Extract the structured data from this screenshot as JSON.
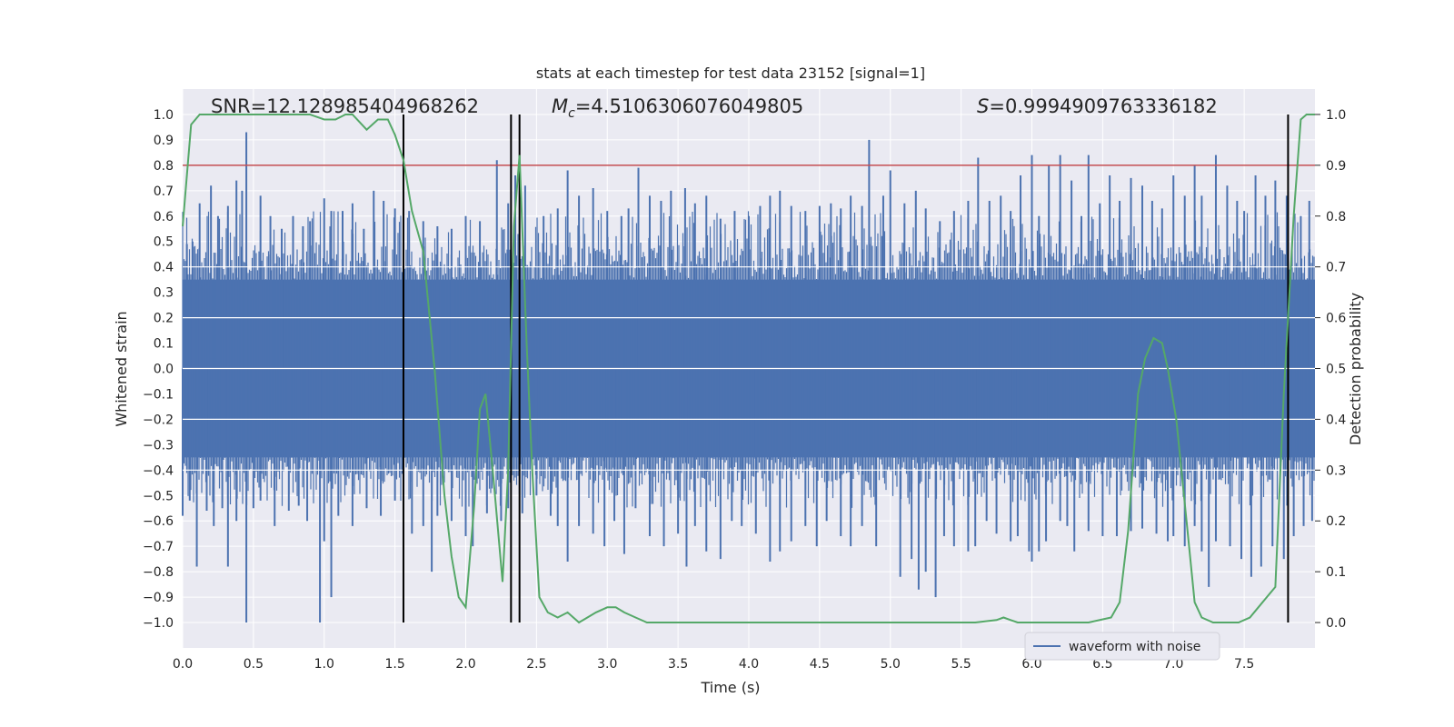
{
  "chart_data": {
    "type": "line",
    "title": "stats at each timestep for test data 23152 [signal=1]",
    "xlabel": "Time (s)",
    "ylabel": "Whitened strain",
    "y2label": "Detection probability",
    "xlim": [
      0.0,
      8.0
    ],
    "ylim": [
      -1.1,
      1.1
    ],
    "y2lim": [
      -0.05,
      1.05
    ],
    "xticks": [
      0.0,
      0.5,
      1.0,
      1.5,
      2.0,
      2.5,
      3.0,
      3.5,
      4.0,
      4.5,
      5.0,
      5.5,
      6.0,
      6.5,
      7.0,
      7.5
    ],
    "xtick_labels": [
      "0.0",
      "0.5",
      "1.0",
      "1.5",
      "2.0",
      "2.5",
      "3.0",
      "3.5",
      "4.0",
      "4.5",
      "5.0",
      "5.5",
      "6.0",
      "6.5",
      "7.0",
      "7.5"
    ],
    "yticks": [
      -1.0,
      -0.9,
      -0.8,
      -0.7,
      -0.6,
      -0.5,
      -0.4,
      -0.3,
      -0.2,
      -0.1,
      0.0,
      0.1,
      0.2,
      0.3,
      0.4,
      0.5,
      0.6,
      0.7,
      0.8,
      0.9,
      1.0
    ],
    "ytick_labels": [
      "−1.0",
      "−0.9",
      "−0.8",
      "−0.7",
      "−0.6",
      "−0.5",
      "−0.4",
      "−0.3",
      "−0.2",
      "−0.1",
      "0.0",
      "0.1",
      "0.2",
      "0.3",
      "0.4",
      "0.5",
      "0.6",
      "0.7",
      "0.8",
      "0.9",
      "1.0"
    ],
    "y2ticks": [
      0.0,
      0.1,
      0.2,
      0.3,
      0.4,
      0.5,
      0.6,
      0.7,
      0.8,
      0.9,
      1.0
    ],
    "y2tick_labels": [
      "0.0",
      "0.1",
      "0.2",
      "0.3",
      "0.4",
      "0.5",
      "0.6",
      "0.7",
      "0.8",
      "0.9",
      "1.0"
    ],
    "waveform": {
      "name": "waveform with noise",
      "color": "#4c72b0",
      "core_amplitude": 0.35,
      "typical_extent": [
        -0.55,
        0.62
      ],
      "spikes_up": [
        [
          0.03,
          0.49
        ],
        [
          0.07,
          0.5
        ],
        [
          0.12,
          0.65
        ],
        [
          0.2,
          0.72
        ],
        [
          0.25,
          0.6
        ],
        [
          0.32,
          0.64
        ],
        [
          0.38,
          0.74
        ],
        [
          0.42,
          0.7
        ],
        [
          0.45,
          0.93
        ],
        [
          0.55,
          0.68
        ],
        [
          0.62,
          0.6
        ],
        [
          0.7,
          0.55
        ],
        [
          0.78,
          0.6
        ],
        [
          0.85,
          0.56
        ],
        [
          0.9,
          0.58
        ],
        [
          1.0,
          0.67
        ],
        [
          1.05,
          0.62
        ],
        [
          1.13,
          0.62
        ],
        [
          1.2,
          0.65
        ],
        [
          1.28,
          0.55
        ],
        [
          1.35,
          0.7
        ],
        [
          1.42,
          0.66
        ],
        [
          1.5,
          0.63
        ],
        [
          1.6,
          0.62
        ],
        [
          1.7,
          0.58
        ],
        [
          1.8,
          0.56
        ],
        [
          1.9,
          0.55
        ],
        [
          2.0,
          0.6
        ],
        [
          2.1,
          0.58
        ],
        [
          2.22,
          0.82
        ],
        [
          2.3,
          0.65
        ],
        [
          2.35,
          0.76
        ],
        [
          2.42,
          0.72
        ],
        [
          2.55,
          0.6
        ],
        [
          2.65,
          0.63
        ],
        [
          2.72,
          0.78
        ],
        [
          2.8,
          0.68
        ],
        [
          2.9,
          0.71
        ],
        [
          3.0,
          0.62
        ],
        [
          3.1,
          0.6
        ],
        [
          3.15,
          0.63
        ],
        [
          3.22,
          0.79
        ],
        [
          3.3,
          0.68
        ],
        [
          3.38,
          0.66
        ],
        [
          3.45,
          0.7
        ],
        [
          3.55,
          0.71
        ],
        [
          3.62,
          0.65
        ],
        [
          3.7,
          0.68
        ],
        [
          3.8,
          0.59
        ],
        [
          3.9,
          0.62
        ],
        [
          4.0,
          0.6
        ],
        [
          4.08,
          0.64
        ],
        [
          4.15,
          0.68
        ],
        [
          4.22,
          0.7
        ],
        [
          4.3,
          0.64
        ],
        [
          4.4,
          0.62
        ],
        [
          4.5,
          0.64
        ],
        [
          4.58,
          0.65
        ],
        [
          4.65,
          0.63
        ],
        [
          4.72,
          0.68
        ],
        [
          4.8,
          0.64
        ],
        [
          4.85,
          0.9
        ],
        [
          4.95,
          0.68
        ],
        [
          5.0,
          0.78
        ],
        [
          5.1,
          0.65
        ],
        [
          5.18,
          0.7
        ],
        [
          5.25,
          0.63
        ],
        [
          5.35,
          0.58
        ],
        [
          5.45,
          0.62
        ],
        [
          5.55,
          0.66
        ],
        [
          5.62,
          0.83
        ],
        [
          5.7,
          0.66
        ],
        [
          5.78,
          0.68
        ],
        [
          5.85,
          0.62
        ],
        [
          5.92,
          0.76
        ],
        [
          6.0,
          0.84
        ],
        [
          6.05,
          0.6
        ],
        [
          6.12,
          0.8
        ],
        [
          6.2,
          0.84
        ],
        [
          6.28,
          0.74
        ],
        [
          6.35,
          0.6
        ],
        [
          6.4,
          0.84
        ],
        [
          6.48,
          0.65
        ],
        [
          6.55,
          0.76
        ],
        [
          6.62,
          0.66
        ],
        [
          6.7,
          0.75
        ],
        [
          6.78,
          0.72
        ],
        [
          6.85,
          0.66
        ],
        [
          6.92,
          0.63
        ],
        [
          7.0,
          0.76
        ],
        [
          7.08,
          0.68
        ],
        [
          7.15,
          0.8
        ],
        [
          7.2,
          0.68
        ],
        [
          7.3,
          0.84
        ],
        [
          7.38,
          0.72
        ],
        [
          7.45,
          0.66
        ],
        [
          7.5,
          0.62
        ],
        [
          7.58,
          0.76
        ],
        [
          7.65,
          0.68
        ],
        [
          7.72,
          0.74
        ],
        [
          7.8,
          0.68
        ],
        [
          7.9,
          0.6
        ],
        [
          7.96,
          0.66
        ]
      ],
      "spikes_down": [
        [
          0.0,
          -0.58
        ],
        [
          0.05,
          -0.52
        ],
        [
          0.1,
          -0.78
        ],
        [
          0.17,
          -0.56
        ],
        [
          0.22,
          -0.62
        ],
        [
          0.28,
          -0.55
        ],
        [
          0.32,
          -0.78
        ],
        [
          0.38,
          -0.6
        ],
        [
          0.45,
          -1.0
        ],
        [
          0.5,
          -0.55
        ],
        [
          0.55,
          -0.52
        ],
        [
          0.65,
          -0.62
        ],
        [
          0.75,
          -0.56
        ],
        [
          0.82,
          -0.54
        ],
        [
          0.88,
          -0.6
        ],
        [
          0.97,
          -1.0
        ],
        [
          1.0,
          -0.68
        ],
        [
          1.05,
          -0.9
        ],
        [
          1.1,
          -0.58
        ],
        [
          1.2,
          -0.62
        ],
        [
          1.3,
          -0.55
        ],
        [
          1.4,
          -0.58
        ],
        [
          1.5,
          -0.52
        ],
        [
          1.62,
          -0.65
        ],
        [
          1.7,
          -0.62
        ],
        [
          1.76,
          -0.8
        ],
        [
          1.8,
          -0.58
        ],
        [
          1.9,
          -0.6
        ],
        [
          2.0,
          -0.66
        ],
        [
          2.05,
          -0.7
        ],
        [
          2.15,
          -0.57
        ],
        [
          2.25,
          -0.6
        ],
        [
          2.3,
          -0.55
        ],
        [
          2.4,
          -0.57
        ],
        [
          2.5,
          -0.5
        ],
        [
          2.6,
          -0.58
        ],
        [
          2.65,
          -0.62
        ],
        [
          2.72,
          -0.76
        ],
        [
          2.8,
          -0.62
        ],
        [
          2.9,
          -0.65
        ],
        [
          2.98,
          -0.7
        ],
        [
          3.05,
          -0.6
        ],
        [
          3.12,
          -0.73
        ],
        [
          3.2,
          -0.55
        ],
        [
          3.3,
          -0.66
        ],
        [
          3.4,
          -0.7
        ],
        [
          3.5,
          -0.65
        ],
        [
          3.56,
          -0.78
        ],
        [
          3.62,
          -0.62
        ],
        [
          3.7,
          -0.72
        ],
        [
          3.8,
          -0.75
        ],
        [
          3.88,
          -0.6
        ],
        [
          3.95,
          -0.62
        ],
        [
          4.05,
          -0.65
        ],
        [
          4.15,
          -0.76
        ],
        [
          4.22,
          -0.72
        ],
        [
          4.3,
          -0.68
        ],
        [
          4.4,
          -0.62
        ],
        [
          4.48,
          -0.7
        ],
        [
          4.55,
          -0.6
        ],
        [
          4.65,
          -0.66
        ],
        [
          4.72,
          -0.7
        ],
        [
          4.8,
          -0.62
        ],
        [
          4.9,
          -0.7
        ],
        [
          5.07,
          -0.82
        ],
        [
          5.15,
          -0.75
        ],
        [
          5.2,
          -0.87
        ],
        [
          5.25,
          -0.8
        ],
        [
          5.32,
          -0.9
        ],
        [
          5.38,
          -0.66
        ],
        [
          5.45,
          -0.7
        ],
        [
          5.55,
          -0.72
        ],
        [
          5.6,
          -0.7
        ],
        [
          5.68,
          -0.6
        ],
        [
          5.75,
          -0.65
        ],
        [
          5.85,
          -0.68
        ],
        [
          5.9,
          -0.66
        ],
        [
          5.98,
          -0.72
        ],
        [
          6.0,
          -0.76
        ],
        [
          6.05,
          -0.72
        ],
        [
          6.1,
          -0.68
        ],
        [
          6.2,
          -0.6
        ],
        [
          6.25,
          -0.62
        ],
        [
          6.3,
          -0.72
        ],
        [
          6.4,
          -0.64
        ],
        [
          6.5,
          -0.66
        ],
        [
          6.6,
          -0.66
        ],
        [
          6.7,
          -0.64
        ],
        [
          6.78,
          -0.63
        ],
        [
          6.88,
          -0.65
        ],
        [
          6.96,
          -0.68
        ],
        [
          7.0,
          -0.66
        ],
        [
          7.08,
          -0.7
        ],
        [
          7.15,
          -0.62
        ],
        [
          7.2,
          -0.72
        ],
        [
          7.25,
          -0.86
        ],
        [
          7.3,
          -0.68
        ],
        [
          7.4,
          -0.7
        ],
        [
          7.48,
          -0.75
        ],
        [
          7.55,
          -0.82
        ],
        [
          7.62,
          -0.78
        ],
        [
          7.7,
          -0.7
        ],
        [
          7.78,
          -0.75
        ],
        [
          7.85,
          -0.66
        ],
        [
          7.92,
          -0.62
        ],
        [
          7.98,
          -0.6
        ]
      ]
    },
    "probability": {
      "color": "#55a868",
      "x": [
        0.0,
        0.06,
        0.12,
        0.4,
        0.9,
        1.0,
        1.08,
        1.15,
        1.2,
        1.3,
        1.38,
        1.45,
        1.5,
        1.56,
        1.62,
        1.7,
        1.78,
        1.85,
        1.9,
        1.95,
        2.0,
        2.06,
        2.1,
        2.14,
        2.2,
        2.26,
        2.3,
        2.34,
        2.38,
        2.43,
        2.47,
        2.52,
        2.58,
        2.65,
        2.72,
        2.8,
        2.86,
        2.92,
        3.0,
        3.06,
        3.12,
        3.2,
        3.28,
        3.4,
        3.6,
        3.8,
        4.0,
        4.2,
        4.4,
        4.6,
        4.8,
        5.0,
        5.2,
        5.4,
        5.6,
        5.75,
        5.8,
        5.85,
        5.9,
        6.0,
        6.2,
        6.4,
        6.56,
        6.62,
        6.68,
        6.75,
        6.8,
        6.86,
        6.92,
        6.96,
        7.02,
        7.1,
        7.15,
        7.2,
        7.28,
        7.36,
        7.46,
        7.54,
        7.6,
        7.66,
        7.72,
        7.78,
        7.85,
        7.9,
        7.94,
        8.0
      ],
      "y": [
        0.78,
        0.98,
        1.0,
        1.0,
        1.0,
        0.99,
        0.99,
        1.0,
        1.0,
        0.97,
        0.99,
        0.99,
        0.96,
        0.91,
        0.81,
        0.73,
        0.5,
        0.25,
        0.13,
        0.05,
        0.03,
        0.23,
        0.42,
        0.45,
        0.27,
        0.08,
        0.3,
        0.78,
        0.92,
        0.55,
        0.3,
        0.05,
        0.02,
        0.01,
        0.02,
        0.0,
        0.01,
        0.02,
        0.03,
        0.03,
        0.02,
        0.01,
        0.0,
        0.0,
        0.0,
        0.0,
        0.0,
        0.0,
        0.0,
        0.0,
        0.0,
        0.0,
        0.0,
        0.0,
        0.0,
        0.005,
        0.01,
        0.005,
        0.0,
        0.0,
        0.0,
        0.0,
        0.01,
        0.04,
        0.18,
        0.45,
        0.52,
        0.56,
        0.55,
        0.5,
        0.4,
        0.18,
        0.04,
        0.01,
        0.0,
        0.0,
        0.0,
        0.01,
        0.03,
        0.05,
        0.07,
        0.45,
        0.8,
        0.99,
        1.0,
        1.0
      ]
    },
    "threshold": {
      "value": 0.9,
      "axis": "y2",
      "color": "#c44e52"
    },
    "vertical_markers": {
      "x": [
        1.56,
        2.32,
        2.38,
        7.81
      ],
      "color": "#000000"
    },
    "annotations": [
      {
        "text": "SNR=12.128985404968262"
      },
      {
        "prefix": "M",
        "subscript": "c",
        "text": "=4.5106306076049805"
      },
      {
        "prefix": "S",
        "text": "=0.9994909763336182"
      }
    ],
    "legend": {
      "entries": [
        "waveform with noise"
      ],
      "position": "lower-right"
    },
    "grid": true
  }
}
